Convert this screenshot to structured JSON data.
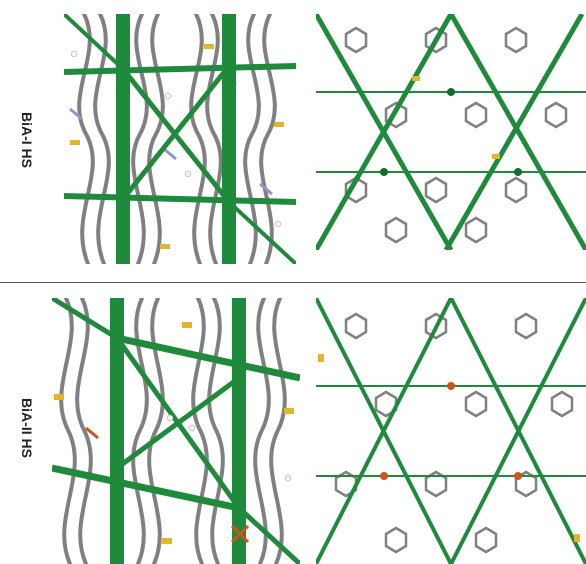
{
  "rows": [
    {
      "label": "BiA-I HS"
    },
    {
      "label": "BiA-II HS"
    }
  ],
  "colors": {
    "framework_green": "#1f8a3b",
    "framework_dark": "#146b2a",
    "molecule_gray": "#7c7c7c",
    "nitrogen_blue": "#8f96c8",
    "sulfur_yellow": "#e3b52a",
    "iron_orange": "#d0531a",
    "hydrogen_white": "#f2f2f2"
  },
  "panels": [
    {
      "name": "bia-i-side-view",
      "style": "side"
    },
    {
      "name": "bia-i-top-view",
      "style": "top"
    },
    {
      "name": "bia-ii-side-view",
      "style": "side"
    },
    {
      "name": "bia-ii-top-view",
      "style": "top"
    }
  ]
}
